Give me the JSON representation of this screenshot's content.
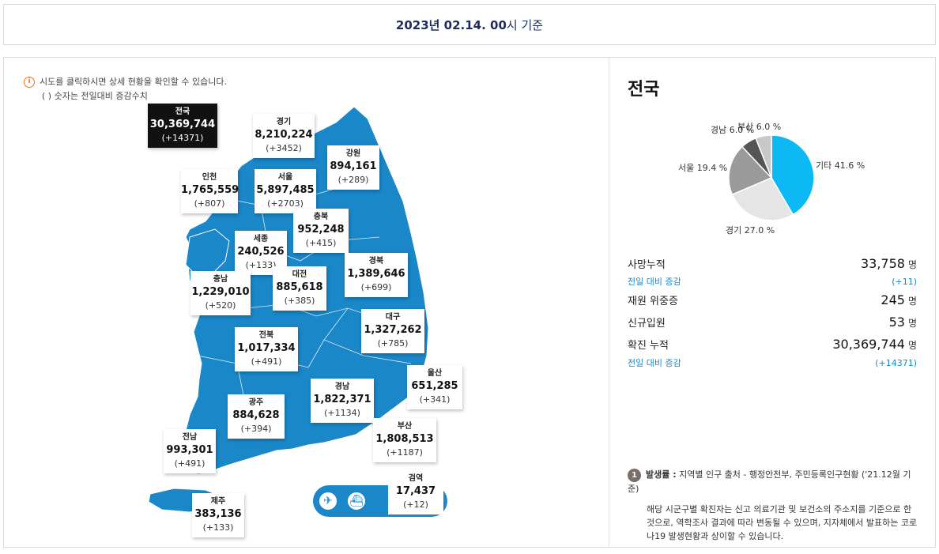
{
  "header": {
    "date_bold": "2023년 02.14. 00",
    "date_rest": "시 기준"
  },
  "notice": {
    "line1": "시도를 클릭하시면 상세 현황을 확인할 수 있습니다.",
    "line2": "( ) 숫자는 전일대비 증감수치",
    "icon": "i"
  },
  "regions": {
    "national": {
      "name": "전국",
      "value": "30,369,744",
      "inc": "(+14371)"
    },
    "gyeonggi": {
      "name": "경기",
      "value": "8,210,224",
      "inc": "(+3452)"
    },
    "gangwon": {
      "name": "강원",
      "value": "894,161",
      "inc": "(+289)"
    },
    "incheon": {
      "name": "인천",
      "value": "1,765,559",
      "inc": "(+807)"
    },
    "seoul": {
      "name": "서울",
      "value": "5,897,485",
      "inc": "(+2703)"
    },
    "chungbuk": {
      "name": "충북",
      "value": "952,248",
      "inc": "(+415)"
    },
    "sejong": {
      "name": "세종",
      "value": "240,526",
      "inc": "(+133)"
    },
    "gyeongbuk": {
      "name": "경북",
      "value": "1,389,646",
      "inc": "(+699)"
    },
    "chungnam": {
      "name": "충남",
      "value": "1,229,010",
      "inc": "(+520)"
    },
    "daejeon": {
      "name": "대전",
      "value": "885,618",
      "inc": "(+385)"
    },
    "daegu": {
      "name": "대구",
      "value": "1,327,262",
      "inc": "(+785)"
    },
    "jeonbuk": {
      "name": "전북",
      "value": "1,017,334",
      "inc": "(+491)"
    },
    "ulsan": {
      "name": "울산",
      "value": "651,285",
      "inc": "(+341)"
    },
    "gyeongnam": {
      "name": "경남",
      "value": "1,822,371",
      "inc": "(+1134)"
    },
    "gwangju": {
      "name": "광주",
      "value": "884,628",
      "inc": "(+394)"
    },
    "busan": {
      "name": "부산",
      "value": "1,808,513",
      "inc": "(+1187)"
    },
    "jeonnam": {
      "name": "전남",
      "value": "993,301",
      "inc": "(+491)"
    },
    "quarantine": {
      "name": "검역",
      "value": "17,437",
      "inc": "(+12)"
    },
    "jeju": {
      "name": "제주",
      "value": "383,136",
      "inc": "(+133)"
    }
  },
  "quarantine_icons": {
    "plane": "✈",
    "ship": "⛴"
  },
  "summary": {
    "title": "전국",
    "pie": [
      {
        "label": "기타 41.6 %",
        "value": 41.6,
        "color": "#0cb9f2"
      },
      {
        "label": "경기 27.0 %",
        "value": 27.0,
        "color": "#e5e5e5"
      },
      {
        "label": "서울 19.4 %",
        "value": 19.4,
        "color": "#9a9a9a"
      },
      {
        "label": "경남 6.0 %",
        "value": 6.0,
        "color": "#555555"
      },
      {
        "label": "부산 6.0 %",
        "value": 6.0,
        "color": "#c8c8c8"
      }
    ],
    "deaths_label": "사망누적",
    "deaths_value": "33,758",
    "unit": "명",
    "deaths_change_label": "전일 대비 증감",
    "deaths_change_value": "(+11)",
    "critical_label": "재원 위중증",
    "critical_value": "245",
    "admitted_label": "신규입원",
    "admitted_value": "53",
    "confirmed_label": "확진 누적",
    "confirmed_value": "30,369,744",
    "confirmed_change_label": "전일 대비 증감",
    "confirmed_change_value": "(+14371)"
  },
  "footnote": {
    "badge": "1",
    "head": "발생률 :",
    "source": " 지역별 인구 출처 - 행정안전부, 주민등록인구현황 ('21.12월 기준)",
    "body": "해당 시군구별 확진자는 신고 의료기관 및 보건소의 주소지를 기준으로 한 것으로, 역학조사 결과에 따라 변동될 수 있으며, 지자체에서 발표하는 코로나19 발생현황과 상이할 수 있습니다."
  }
}
